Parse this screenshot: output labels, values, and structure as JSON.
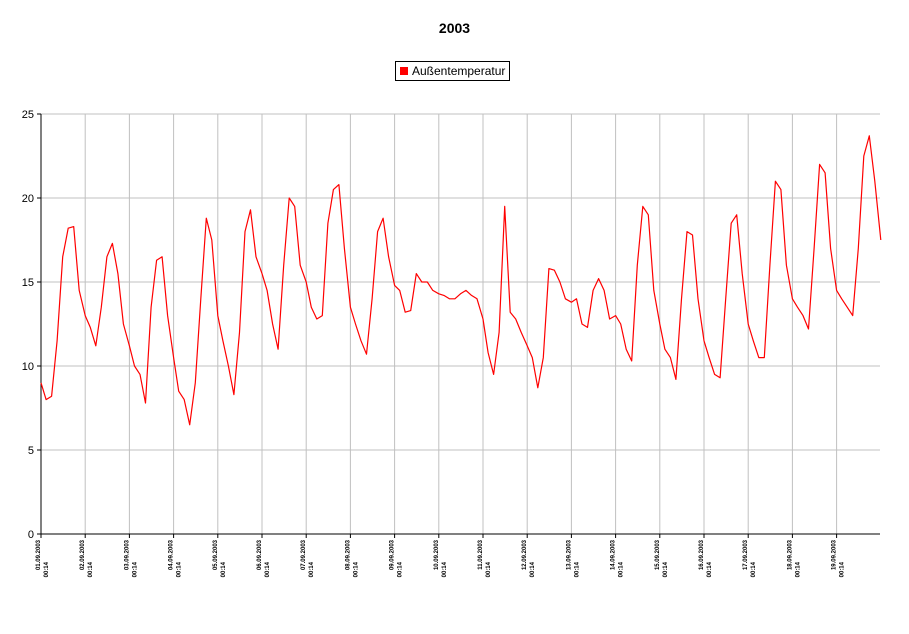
{
  "chart_data": {
    "type": "line",
    "title": "2003",
    "xlabel": "",
    "ylabel": "",
    "ylim": [
      0,
      25
    ],
    "yticks": [
      0,
      5,
      10,
      15,
      20,
      25
    ],
    "grid": true,
    "legend_position": "top-center",
    "x_tick_labels": [
      {
        "date": "01.09.2003",
        "time": "00:14"
      },
      {
        "date": "02.09.2003",
        "time": "00:14"
      },
      {
        "date": "03.09.2003",
        "time": "00:14"
      },
      {
        "date": "04.09.2003",
        "time": "00:14"
      },
      {
        "date": "05.09.2003",
        "time": "00:14"
      },
      {
        "date": "06.09.2003",
        "time": "00:14"
      },
      {
        "date": "07.09.2003",
        "time": "00:14"
      },
      {
        "date": "08.09.2003",
        "time": "00:14"
      },
      {
        "date": "09.09.2003",
        "time": "00:14"
      },
      {
        "date": "10.09.2003",
        "time": "00:14"
      },
      {
        "date": "11.09.2003",
        "time": "00:14"
      },
      {
        "date": "12.09.2003",
        "time": "00:14"
      },
      {
        "date": "13.09.2003",
        "time": "00:14"
      },
      {
        "date": "14.09.2003",
        "time": "00:14"
      },
      {
        "date": "15.09.2003",
        "time": "00:14"
      },
      {
        "date": "16.09.2003",
        "time": "00:14"
      },
      {
        "date": "17.09.2003",
        "time": "00:14"
      },
      {
        "date": "18.09.2003",
        "time": "00:14"
      },
      {
        "date": "19.09.2003",
        "time": "00:14"
      }
    ],
    "series": [
      {
        "name": "Außentemperatur",
        "color": "#ff0000",
        "points": [
          [
            "01.09.2003 00:14",
            9.0
          ],
          [
            "01.09.2003 03:00",
            8.0
          ],
          [
            "01.09.2003 06:00",
            8.2
          ],
          [
            "01.09.2003 09:00",
            11.5
          ],
          [
            "01.09.2003 12:00",
            16.5
          ],
          [
            "01.09.2003 15:00",
            18.2
          ],
          [
            "01.09.2003 18:00",
            18.3
          ],
          [
            "01.09.2003 21:00",
            14.5
          ],
          [
            "02.09.2003 00:14",
            13.0
          ],
          [
            "02.09.2003 03:00",
            12.3
          ],
          [
            "02.09.2003 06:00",
            11.2
          ],
          [
            "02.09.2003 09:00",
            13.5
          ],
          [
            "02.09.2003 12:00",
            16.5
          ],
          [
            "02.09.2003 15:00",
            17.3
          ],
          [
            "02.09.2003 18:00",
            15.5
          ],
          [
            "02.09.2003 21:00",
            12.5
          ],
          [
            "03.09.2003 00:14",
            11.2
          ],
          [
            "03.09.2003 03:00",
            10.0
          ],
          [
            "03.09.2003 06:00",
            9.5
          ],
          [
            "03.09.2003 09:00",
            7.8
          ],
          [
            "03.09.2003 12:00",
            13.5
          ],
          [
            "03.09.2003 15:00",
            16.3
          ],
          [
            "03.09.2003 18:00",
            16.5
          ],
          [
            "03.09.2003 21:00",
            13.0
          ],
          [
            "04.09.2003 00:14",
            10.5
          ],
          [
            "04.09.2003 03:00",
            8.5
          ],
          [
            "04.09.2003 06:00",
            8.0
          ],
          [
            "04.09.2003 09:00",
            6.5
          ],
          [
            "04.09.2003 12:00",
            9.0
          ],
          [
            "04.09.2003 15:00",
            14.0
          ],
          [
            "04.09.2003 18:00",
            18.8
          ],
          [
            "04.09.2003 21:00",
            17.5
          ],
          [
            "05.09.2003 00:14",
            13.0
          ],
          [
            "05.09.2003 03:00",
            11.5
          ],
          [
            "05.09.2003 06:00",
            10.0
          ],
          [
            "05.09.2003 09:00",
            8.3
          ],
          [
            "05.09.2003 12:00",
            12.0
          ],
          [
            "05.09.2003 15:00",
            18.0
          ],
          [
            "05.09.2003 18:00",
            19.3
          ],
          [
            "05.09.2003 21:00",
            16.5
          ],
          [
            "06.09.2003 00:14",
            15.5
          ],
          [
            "06.09.2003 03:00",
            14.5
          ],
          [
            "06.09.2003 06:00",
            12.5
          ],
          [
            "06.09.2003 09:00",
            11.0
          ],
          [
            "06.09.2003 12:00",
            16.0
          ],
          [
            "06.09.2003 15:00",
            20.0
          ],
          [
            "06.09.2003 18:00",
            19.5
          ],
          [
            "06.09.2003 21:00",
            16.0
          ],
          [
            "07.09.2003 00:14",
            15.0
          ],
          [
            "07.09.2003 03:00",
            13.5
          ],
          [
            "07.09.2003 06:00",
            12.8
          ],
          [
            "07.09.2003 09:00",
            13.0
          ],
          [
            "07.09.2003 12:00",
            18.5
          ],
          [
            "07.09.2003 15:00",
            20.5
          ],
          [
            "07.09.2003 18:00",
            20.8
          ],
          [
            "07.09.2003 21:00",
            17.0
          ],
          [
            "08.09.2003 00:14",
            13.5
          ],
          [
            "08.09.2003 03:00",
            12.5
          ],
          [
            "08.09.2003 06:00",
            11.5
          ],
          [
            "08.09.2003 09:00",
            10.7
          ],
          [
            "08.09.2003 12:00",
            14.0
          ],
          [
            "08.09.2003 15:00",
            18.0
          ],
          [
            "08.09.2003 18:00",
            18.8
          ],
          [
            "08.09.2003 21:00",
            16.5
          ],
          [
            "09.09.2003 00:14",
            14.8
          ],
          [
            "09.09.2003 03:00",
            14.5
          ],
          [
            "09.09.2003 06:00",
            13.2
          ],
          [
            "09.09.2003 09:00",
            13.3
          ],
          [
            "09.09.2003 12:00",
            15.5
          ],
          [
            "09.09.2003 15:00",
            15.0
          ],
          [
            "09.09.2003 18:00",
            15.0
          ],
          [
            "09.09.2003 21:00",
            14.5
          ],
          [
            "10.09.2003 00:14",
            14.3
          ],
          [
            "10.09.2003 03:00",
            14.2
          ],
          [
            "10.09.2003 06:00",
            14.0
          ],
          [
            "10.09.2003 09:00",
            14.0
          ],
          [
            "10.09.2003 12:00",
            14.3
          ],
          [
            "10.09.2003 15:00",
            14.5
          ],
          [
            "10.09.2003 18:00",
            14.2
          ],
          [
            "10.09.2003 21:00",
            14.0
          ],
          [
            "11.09.2003 00:14",
            12.8
          ],
          [
            "11.09.2003 03:00",
            10.8
          ],
          [
            "11.09.2003 06:00",
            9.5
          ],
          [
            "11.09.2003 09:00",
            12.0
          ],
          [
            "11.09.2003 12:00",
            19.5
          ],
          [
            "11.09.2003 15:00",
            13.2
          ],
          [
            "11.09.2003 18:00",
            12.8
          ],
          [
            "11.09.2003 21:00",
            12.0
          ],
          [
            "12.09.2003 00:14",
            11.2
          ],
          [
            "12.09.2003 03:00",
            10.5
          ],
          [
            "12.09.2003 06:00",
            8.7
          ],
          [
            "12.09.2003 09:00",
            10.5
          ],
          [
            "12.09.2003 12:00",
            15.8
          ],
          [
            "12.09.2003 15:00",
            15.7
          ],
          [
            "12.09.2003 18:00",
            15.0
          ],
          [
            "12.09.2003 21:00",
            14.0
          ],
          [
            "13.09.2003 00:14",
            13.8
          ],
          [
            "13.09.2003 03:00",
            14.0
          ],
          [
            "13.09.2003 06:00",
            12.5
          ],
          [
            "13.09.2003 09:00",
            12.3
          ],
          [
            "13.09.2003 12:00",
            14.5
          ],
          [
            "13.09.2003 15:00",
            15.2
          ],
          [
            "13.09.2003 18:00",
            14.5
          ],
          [
            "13.09.2003 21:00",
            12.8
          ],
          [
            "14.09.2003 00:14",
            13.0
          ],
          [
            "14.09.2003 03:00",
            12.5
          ],
          [
            "14.09.2003 06:00",
            11.0
          ],
          [
            "14.09.2003 09:00",
            10.3
          ],
          [
            "14.09.2003 12:00",
            16.0
          ],
          [
            "14.09.2003 15:00",
            19.5
          ],
          [
            "14.09.2003 18:00",
            19.0
          ],
          [
            "14.09.2003 21:00",
            14.5
          ],
          [
            "15.09.2003 00:14",
            12.5
          ],
          [
            "15.09.2003 03:00",
            11.0
          ],
          [
            "15.09.2003 06:00",
            10.5
          ],
          [
            "15.09.2003 09:00",
            9.2
          ],
          [
            "15.09.2003 12:00",
            14.0
          ],
          [
            "15.09.2003 15:00",
            18.0
          ],
          [
            "15.09.2003 18:00",
            17.8
          ],
          [
            "15.09.2003 21:00",
            14.0
          ],
          [
            "16.09.2003 00:14",
            11.5
          ],
          [
            "16.09.2003 03:00",
            10.5
          ],
          [
            "16.09.2003 06:00",
            9.5
          ],
          [
            "16.09.2003 09:00",
            9.3
          ],
          [
            "16.09.2003 12:00",
            14.0
          ],
          [
            "16.09.2003 15:00",
            18.5
          ],
          [
            "16.09.2003 18:00",
            19.0
          ],
          [
            "16.09.2003 21:00",
            15.5
          ],
          [
            "17.09.2003 00:14",
            12.5
          ],
          [
            "17.09.2003 03:00",
            11.5
          ],
          [
            "17.09.2003 06:00",
            10.5
          ],
          [
            "17.09.2003 09:00",
            10.5
          ],
          [
            "17.09.2003 12:00",
            16.0
          ],
          [
            "17.09.2003 15:00",
            21.0
          ],
          [
            "17.09.2003 18:00",
            20.5
          ],
          [
            "17.09.2003 21:00",
            16.0
          ],
          [
            "18.09.2003 00:14",
            14.0
          ],
          [
            "18.09.2003 03:00",
            13.5
          ],
          [
            "18.09.2003 06:00",
            13.0
          ],
          [
            "18.09.2003 09:00",
            12.2
          ],
          [
            "18.09.2003 12:00",
            17.0
          ],
          [
            "18.09.2003 15:00",
            22.0
          ],
          [
            "18.09.2003 18:00",
            21.5
          ],
          [
            "18.09.2003 21:00",
            17.0
          ],
          [
            "19.09.2003 00:14",
            14.5
          ],
          [
            "19.09.2003 03:00",
            14.0
          ],
          [
            "19.09.2003 06:00",
            13.5
          ],
          [
            "19.09.2003 09:00",
            13.0
          ],
          [
            "19.09.2003 12:00",
            17.0
          ],
          [
            "19.09.2003 15:00",
            22.5
          ],
          [
            "19.09.2003 18:00",
            23.7
          ],
          [
            "19.09.2003 21:00",
            21.0
          ],
          [
            "20.09.2003 00:14",
            17.5
          ]
        ]
      }
    ]
  }
}
